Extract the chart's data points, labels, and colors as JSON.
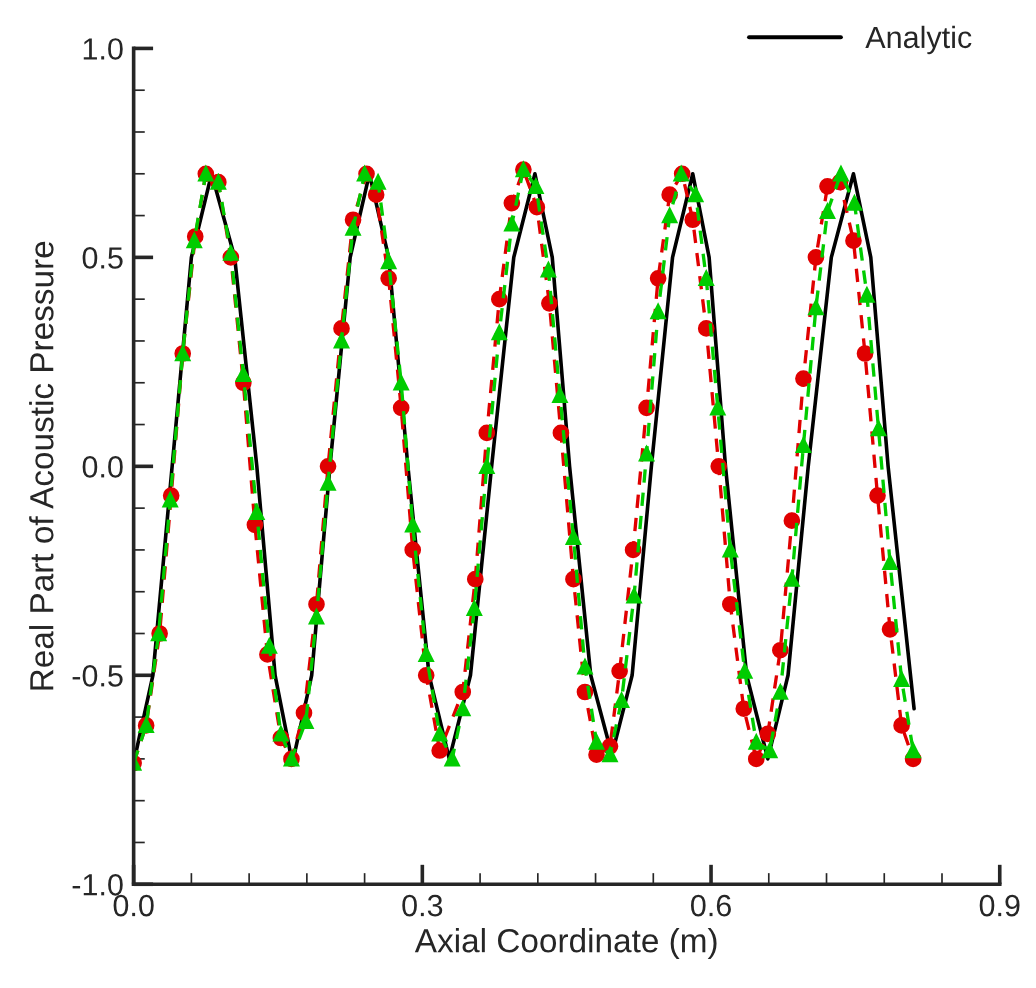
{
  "chart_data": {
    "type": "line",
    "xlabel": "Axial Coordinate (m)",
    "ylabel": "Real Part of Acoustic Pressure",
    "xlim": [
      0,
      0.9
    ],
    "xticks": [
      {
        "value": 0,
        "label": "0.0"
      },
      {
        "value": 0.3,
        "label": "0.3"
      },
      {
        "value": 0.6,
        "label": "0.6"
      },
      {
        "value": 0.9,
        "label": "0.9"
      }
    ],
    "ylim": [
      -1,
      1
    ],
    "yticks": [
      {
        "value": -1,
        "label": "-1.0"
      },
      {
        "value": -0.5,
        "label": "-0.5"
      },
      {
        "value": 0,
        "label": "0.0"
      },
      {
        "value": 0.5,
        "label": "0.5"
      },
      {
        "value": 1,
        "label": "1.0"
      }
    ],
    "grid": false,
    "legend": "top right",
    "series": [
      {
        "name": "Analytic",
        "color": "#000000",
        "marker": "none",
        "line_style": "solid",
        "x": [
          0,
          0.02,
          0.04,
          0.06,
          0.081,
          0.105,
          0.128,
          0.147,
          0.165,
          0.185,
          0.204,
          0.225,
          0.245,
          0.265,
          0.285,
          0.307,
          0.328,
          0.35,
          0.372,
          0.395,
          0.417,
          0.435,
          0.453,
          0.475,
          0.497,
          0.518,
          0.538,
          0.56,
          0.581,
          0.598,
          0.615,
          0.637,
          0.659,
          0.68,
          0.701,
          0.725,
          0.748,
          0.766,
          0.784,
          0.811
        ],
        "values": [
          -0.71,
          -0.5,
          0,
          0.5,
          0.7,
          0.5,
          0,
          -0.5,
          -0.71,
          -0.5,
          0,
          0.5,
          0.7,
          0.5,
          0,
          -0.5,
          -0.7,
          -0.5,
          0,
          0.5,
          0.7,
          0.5,
          0,
          -0.5,
          -0.69,
          -0.5,
          0,
          0.5,
          0.7,
          0.5,
          0,
          -0.5,
          -0.7,
          -0.5,
          0,
          0.5,
          0.7,
          0.5,
          0,
          -0.58
        ]
      },
      {
        "color": "#e00000",
        "marker": "circle",
        "line_style": "dashed",
        "x": [
          0.0,
          0.013,
          0.027,
          0.039,
          0.051,
          0.064,
          0.075,
          0.088,
          0.101,
          0.114,
          0.126,
          0.139,
          0.153,
          0.164,
          0.177,
          0.19,
          0.202,
          0.216,
          0.228,
          0.242,
          0.252,
          0.265,
          0.278,
          0.29,
          0.304,
          0.318,
          0.342,
          0.355,
          0.367,
          0.38,
          0.393,
          0.405,
          0.419,
          0.432,
          0.444,
          0.457,
          0.469,
          0.481,
          0.495,
          0.505,
          0.519,
          0.533,
          0.545,
          0.557,
          0.57,
          0.581,
          0.595,
          0.608,
          0.62,
          0.634,
          0.647,
          0.659,
          0.672,
          0.684,
          0.696,
          0.709,
          0.721,
          0.734,
          0.748,
          0.76,
          0.773,
          0.786,
          0.798,
          0.81
        ],
        "values": [
          -0.71,
          -0.62,
          -0.4,
          -0.07,
          0.27,
          0.55,
          0.7,
          0.68,
          0.5,
          0.2,
          -0.14,
          -0.45,
          -0.65,
          -0.7,
          -0.59,
          -0.33,
          0.0,
          0.33,
          0.59,
          0.7,
          0.65,
          0.45,
          0.14,
          -0.2,
          -0.5,
          -0.68,
          -0.54,
          -0.27,
          0.08,
          0.4,
          0.63,
          0.71,
          0.62,
          0.39,
          0.08,
          -0.27,
          -0.54,
          -0.69,
          -0.67,
          -0.49,
          -0.2,
          0.14,
          0.45,
          0.65,
          0.7,
          0.59,
          0.33,
          0.0,
          -0.33,
          -0.58,
          -0.7,
          -0.64,
          -0.44,
          -0.13,
          0.21,
          0.5,
          0.67,
          0.68,
          0.54,
          0.27,
          -0.07,
          -0.39,
          -0.62,
          -0.7
        ]
      },
      {
        "color": "#00cc00",
        "marker": "triangle",
        "line_style": "dashed",
        "x": [
          0.0,
          0.013,
          0.026,
          0.038,
          0.051,
          0.063,
          0.075,
          0.088,
          0.101,
          0.114,
          0.128,
          0.141,
          0.153,
          0.164,
          0.179,
          0.19,
          0.202,
          0.216,
          0.228,
          0.24,
          0.254,
          0.265,
          0.278,
          0.29,
          0.304,
          0.318,
          0.331,
          0.342,
          0.354,
          0.367,
          0.38,
          0.393,
          0.405,
          0.418,
          0.431,
          0.443,
          0.457,
          0.469,
          0.481,
          0.495,
          0.507,
          0.52,
          0.533,
          0.545,
          0.557,
          0.569,
          0.584,
          0.595,
          0.607,
          0.62,
          0.635,
          0.647,
          0.661,
          0.672,
          0.684,
          0.696,
          0.709,
          0.721,
          0.735,
          0.749,
          0.762,
          0.774,
          0.786,
          0.798,
          0.81
        ],
        "values": [
          -0.71,
          -0.62,
          -0.4,
          -0.08,
          0.27,
          0.54,
          0.7,
          0.68,
          0.51,
          0.22,
          -0.11,
          -0.43,
          -0.64,
          -0.7,
          -0.61,
          -0.36,
          -0.04,
          0.3,
          0.57,
          0.7,
          0.68,
          0.49,
          0.2,
          -0.14,
          -0.45,
          -0.64,
          -0.7,
          -0.58,
          -0.34,
          0.0,
          0.32,
          0.58,
          0.71,
          0.67,
          0.47,
          0.17,
          -0.17,
          -0.48,
          -0.66,
          -0.69,
          -0.56,
          -0.31,
          0.03,
          0.37,
          0.6,
          0.7,
          0.65,
          0.45,
          0.14,
          -0.2,
          -0.49,
          -0.66,
          -0.68,
          -0.54,
          -0.27,
          0.05,
          0.38,
          0.61,
          0.7,
          0.63,
          0.41,
          0.09,
          -0.23,
          -0.51,
          -0.68
        ]
      }
    ]
  }
}
